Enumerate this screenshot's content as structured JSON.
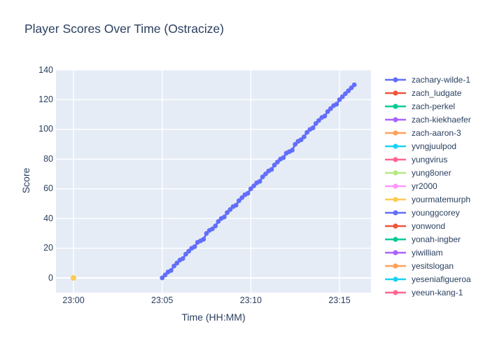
{
  "title": "Player Scores Over Time (Ostracize)",
  "colors": {
    "text": "#2a3f5f",
    "plot_bg": "#e5ecf6",
    "grid": "#ffffff",
    "paper_bg": "#ffffff"
  },
  "chart_data": {
    "type": "line",
    "title": "Player Scores Over Time (Ostracize)",
    "xlabel": "Time (HH:MM)",
    "ylabel": "Score",
    "grid": true,
    "legend_position": "right",
    "x_range_minutes_after_2300": [
      -1.0,
      16.8
    ],
    "ylim": [
      -10,
      140.5
    ],
    "x_ticks": [
      {
        "v": 0,
        "label": "23:00"
      },
      {
        "v": 5,
        "label": "23:05"
      },
      {
        "v": 10,
        "label": "23:10"
      },
      {
        "v": 15,
        "label": "23:15"
      }
    ],
    "y_ticks": [
      0,
      20,
      40,
      60,
      80,
      100,
      120,
      140
    ],
    "series": [
      {
        "name": "zachary-wilde-1",
        "color": "#636efa",
        "mode": "lines+markers",
        "points": [
          [
            5.0,
            0
          ],
          [
            5.167,
            2
          ],
          [
            5.333,
            4
          ],
          [
            5.5,
            5
          ],
          [
            5.667,
            8
          ],
          [
            5.833,
            10
          ],
          [
            6.0,
            12
          ],
          [
            6.167,
            13
          ],
          [
            6.333,
            16
          ],
          [
            6.5,
            18
          ],
          [
            6.667,
            20
          ],
          [
            6.833,
            21
          ],
          [
            7.0,
            24
          ],
          [
            7.167,
            25
          ],
          [
            7.333,
            26
          ],
          [
            7.5,
            30
          ],
          [
            7.667,
            32
          ],
          [
            7.833,
            33
          ],
          [
            8.0,
            35
          ],
          [
            8.167,
            38
          ],
          [
            8.333,
            40
          ],
          [
            8.5,
            41
          ],
          [
            8.667,
            44
          ],
          [
            8.833,
            46
          ],
          [
            9.0,
            48
          ],
          [
            9.167,
            49
          ],
          [
            9.333,
            52
          ],
          [
            9.5,
            54
          ],
          [
            9.667,
            56
          ],
          [
            9.833,
            57
          ],
          [
            10.0,
            60
          ],
          [
            10.167,
            62
          ],
          [
            10.333,
            64
          ],
          [
            10.5,
            65
          ],
          [
            10.667,
            68
          ],
          [
            10.833,
            70
          ],
          [
            11.0,
            72
          ],
          [
            11.167,
            73
          ],
          [
            11.333,
            76
          ],
          [
            11.5,
            78
          ],
          [
            11.667,
            80
          ],
          [
            11.833,
            81
          ],
          [
            12.0,
            84
          ],
          [
            12.167,
            85
          ],
          [
            12.333,
            86
          ],
          [
            12.5,
            90
          ],
          [
            12.667,
            92
          ],
          [
            12.833,
            93
          ],
          [
            13.0,
            95
          ],
          [
            13.167,
            98
          ],
          [
            13.333,
            100
          ],
          [
            13.5,
            101
          ],
          [
            13.667,
            104
          ],
          [
            13.833,
            106
          ],
          [
            14.0,
            108
          ],
          [
            14.167,
            109
          ],
          [
            14.333,
            112
          ],
          [
            14.5,
            114
          ],
          [
            14.667,
            116
          ],
          [
            14.833,
            117
          ],
          [
            15.0,
            120
          ],
          [
            15.167,
            122
          ],
          [
            15.333,
            124
          ],
          [
            15.5,
            126
          ],
          [
            15.667,
            128
          ],
          [
            15.833,
            130
          ]
        ]
      },
      {
        "name": "yourmatemurph",
        "color": "#fecb52",
        "mode": "markers",
        "points": [
          [
            0.0,
            0
          ]
        ]
      }
    ],
    "legend": [
      {
        "name": "zachary-wilde-1",
        "color": "#636efa"
      },
      {
        "name": "zach_ludgate",
        "color": "#ef553b"
      },
      {
        "name": "zach-perkel",
        "color": "#00cc96"
      },
      {
        "name": "zach-kiekhaefer",
        "color": "#ab63fa"
      },
      {
        "name": "zach-aaron-3",
        "color": "#ffa15a"
      },
      {
        "name": "yvngjuulpod",
        "color": "#19d3f3"
      },
      {
        "name": "yungvirus",
        "color": "#ff6692"
      },
      {
        "name": "yung8oner",
        "color": "#b6e880"
      },
      {
        "name": "yr2000",
        "color": "#ff97ff"
      },
      {
        "name": "yourmatemurph",
        "color": "#fecb52"
      },
      {
        "name": "younggcorey",
        "color": "#636efa"
      },
      {
        "name": "yonwond",
        "color": "#ef553b"
      },
      {
        "name": "yonah-ingber",
        "color": "#00cc96"
      },
      {
        "name": "yiwilliam",
        "color": "#ab63fa"
      },
      {
        "name": "yesitslogan",
        "color": "#ffa15a"
      },
      {
        "name": "yeseniafigueroa",
        "color": "#19d3f3"
      },
      {
        "name": "yeeun-kang-1",
        "color": "#ff6692"
      }
    ]
  }
}
